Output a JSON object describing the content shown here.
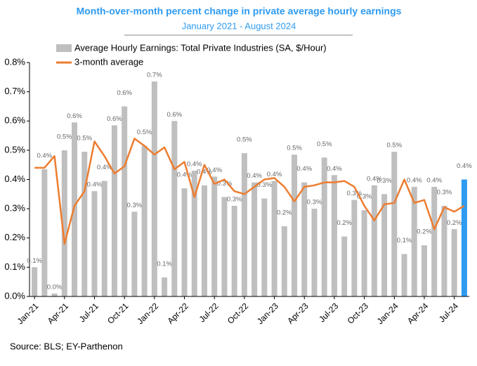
{
  "chart_data": {
    "type": "bar",
    "title": "Month-over-month percent change in private average hourly earnings",
    "subtitle": "January 2021 - August 2024",
    "source": "Source: BLS; EY-Parthenon",
    "categories": [
      "Jan-21",
      null,
      null,
      "Apr-21",
      null,
      null,
      "Jul-21",
      null,
      null,
      "Oct-21",
      null,
      null,
      "Jan-22",
      null,
      null,
      "Apr-22",
      null,
      null,
      "Jul-22",
      null,
      null,
      "Oct-22",
      null,
      null,
      "Jan-23",
      null,
      null,
      "Apr-23",
      null,
      null,
      "Jul-23",
      null,
      null,
      "Oct-23",
      null,
      null,
      "Jan-24",
      null,
      null,
      "Apr-24",
      null,
      null,
      "Jul-24",
      null
    ],
    "series": [
      {
        "name": "Average Hourly Earnings: Total Private Industries (SA, $/Hour)",
        "type": "bar",
        "color": "#bfbfbf",
        "colors": [
          "#bfbfbf",
          "#bfbfbf",
          "#bfbfbf",
          "#bfbfbf",
          "#bfbfbf",
          "#bfbfbf",
          "#bfbfbf",
          "#bfbfbf",
          "#bfbfbf",
          "#bfbfbf",
          "#bfbfbf",
          "#bfbfbf",
          "#bfbfbf",
          "#bfbfbf",
          "#bfbfbf",
          "#bfbfbf",
          "#bfbfbf",
          "#bfbfbf",
          "#bfbfbf",
          "#bfbfbf",
          "#bfbfbf",
          "#bfbfbf",
          "#bfbfbf",
          "#bfbfbf",
          "#bfbfbf",
          "#bfbfbf",
          "#bfbfbf",
          "#bfbfbf",
          "#bfbfbf",
          "#bfbfbf",
          "#bfbfbf",
          "#bfbfbf",
          "#bfbfbf",
          "#bfbfbf",
          "#bfbfbf",
          "#bfbfbf",
          "#bfbfbf",
          "#bfbfbf",
          "#bfbfbf",
          "#bfbfbf",
          "#bfbfbf",
          "#bfbfbf",
          "#bfbfbf",
          "#2e9bf0"
        ],
        "values": [
          0.1,
          0.435,
          0.01,
          0.5,
          0.595,
          0.495,
          0.36,
          0.395,
          0.585,
          0.65,
          0.29,
          0.515,
          0.735,
          0.065,
          0.6,
          0.37,
          0.43,
          0.38,
          0.41,
          0.34,
          0.31,
          0.49,
          0.39,
          0.335,
          0.395,
          0.24,
          0.485,
          0.39,
          0.3,
          0.475,
          0.415,
          0.205,
          0.33,
          0.295,
          0.38,
          0.35,
          0.495,
          0.145,
          0.375,
          0.175,
          0.375,
          0.31,
          0.23,
          0.4
        ],
        "value_labels": [
          "0.1%",
          "0.4%",
          "0.0%",
          "0.5%",
          "0.6%",
          "0.5%",
          "0.4%",
          "0.4%",
          "0.6%",
          "0.6%",
          "0.3%",
          "0.5%",
          "0.7%",
          "0.1%",
          "0.6%",
          "0.4%",
          "0.4%",
          "0.4%",
          "0.4%",
          "0.3%",
          "0.3%",
          "0.5%",
          "0.4%",
          "0.3%",
          "0.4%",
          "0.2%",
          "0.5%",
          "0.4%",
          "0.3%",
          "0.5%",
          "0.4%",
          "0.2%",
          "0.3%",
          "0.3%",
          "0.4%",
          "0.3%",
          "0.5%",
          "0.1%",
          "0.4%",
          "0.2%",
          "0.4%",
          "0.3%",
          "0.2%",
          "0.4%"
        ]
      },
      {
        "name": "3-month average",
        "type": "line",
        "color": "#ed7d31",
        "values": [
          0.44,
          0.44,
          0.48,
          0.18,
          0.31,
          0.36,
          0.53,
          0.48,
          0.42,
          0.445,
          0.54,
          0.515,
          0.485,
          0.51,
          0.435,
          0.46,
          0.34,
          0.45,
          0.385,
          0.4,
          0.36,
          0.35,
          0.375,
          0.4,
          0.405,
          0.375,
          0.325,
          0.375,
          0.38,
          0.39,
          0.39,
          0.395,
          0.375,
          0.31,
          0.26,
          0.315,
          0.32,
          0.4,
          0.32,
          0.33,
          0.23,
          0.305,
          0.29,
          0.31
        ]
      }
    ],
    "ylim": [
      0,
      0.8
    ],
    "yticks": [
      {
        "value": 0,
        "label": "0.0%"
      },
      {
        "value": 0.1,
        "label": "0.1%"
      },
      {
        "value": 0.2,
        "label": "0.2%"
      },
      {
        "value": 0.3,
        "label": "0.3%"
      },
      {
        "value": 0.4,
        "label": "0.4%"
      },
      {
        "value": 0.5,
        "label": "0.5%"
      },
      {
        "value": 0.6,
        "label": "0.6%"
      },
      {
        "value": 0.7,
        "label": "0.7%"
      },
      {
        "value": 0.8,
        "label": "0.8%"
      }
    ]
  }
}
